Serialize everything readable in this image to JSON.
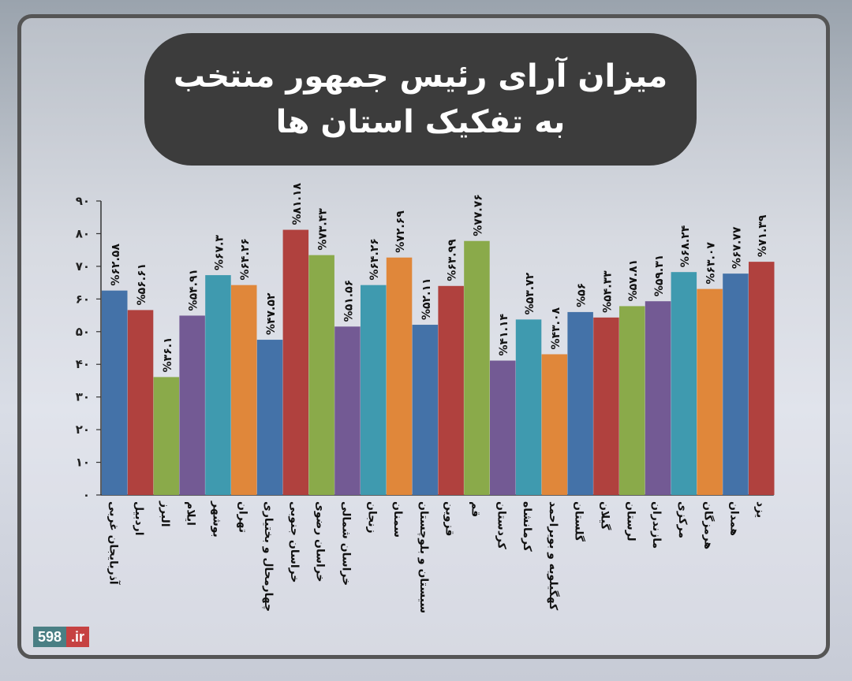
{
  "title": {
    "line1": "میزان آرای رئیس جمهور منتخب",
    "line2": "به تفکیک استان ها"
  },
  "logo": {
    "number": "598",
    "domain": ".ir"
  },
  "chart_data": {
    "type": "bar",
    "title": "میزان آرای رئیس جمهور منتخب به تفکیک استان ها",
    "ylim": [
      0,
      90
    ],
    "yticks": [
      0,
      10,
      20,
      30,
      40,
      50,
      60,
      70,
      80,
      90
    ],
    "ytick_labels": [
      "۰",
      "۱۰",
      "۲۰",
      "۳۰",
      "۴۰",
      "۵۰",
      "۶۰",
      "۷۰",
      "۸۰",
      "۹۰"
    ],
    "grid": false,
    "categories": [
      "آذربایجان غربی",
      "اردبیل",
      "البرز",
      "ایلام",
      "بوشهر",
      "تهران",
      "چهارمحال و بختیاری",
      "خراسان جنوبی",
      "خراسان رضوی",
      "خراسان شمالی",
      "زنجان",
      "سمنان",
      "سیستان و بلوچستان",
      "قزوین",
      "قم",
      "کردستان",
      "کرمانشاه",
      "کهگیلویه و بویراحمد",
      "گلستان",
      "گیلان",
      "لرستان",
      "مازندران",
      "مرکزی",
      "هرمزگان",
      "همدان",
      "یزد"
    ],
    "values": [
      62.58,
      56.61,
      36.1,
      54.91,
      67.3,
      64.26,
      47.52,
      81.18,
      73.43,
      51.56,
      64.26,
      72.69,
      52.11,
      63.99,
      77.76,
      41.14,
      53.72,
      43.08,
      56,
      54.33,
      57.81,
      59.31,
      68.24,
      63.07,
      67.77,
      71.39
    ],
    "data_labels": [
      "%۶۲.۵۸",
      "%۵۶.۶۱",
      "%۳۶.۱",
      "%۵۴.۹۱",
      "%۶۷.۳",
      "%۶۴.۲۶",
      "%۴۷.۵۲",
      "%۸۱.۱۸",
      "%۷۳.۴۳",
      "%۵۱.۵۶",
      "%۶۴.۲۶",
      "%۷۲.۶۹",
      "%۵۲.۱۱",
      "%۶۳.۹۹",
      "%۷۷.۷۶",
      "%۴۱.۱۴",
      "%۵۳.۷۲",
      "%۴۳.۰۸",
      "%۵۶",
      "%۵۴.۳۳",
      "%۵۷.۸۱",
      "%۵۹.۳۱",
      "%۶۸.۲۴",
      "%۶۳.۰۷",
      "%۶۷.۷۷",
      "%۷۱.۳۹"
    ],
    "colors": [
      "#4472a8",
      "#b0413e",
      "#8aaa4a",
      "#735a94",
      "#3f9aaf",
      "#e0873a",
      "#4472a8",
      "#b0413e",
      "#8aaa4a",
      "#735a94",
      "#3f9aaf",
      "#e0873a",
      "#4472a8",
      "#b0413e",
      "#8aaa4a",
      "#735a94",
      "#3f9aaf",
      "#e0873a",
      "#4472a8",
      "#b0413e",
      "#8aaa4a",
      "#735a94",
      "#3f9aaf",
      "#e0873a",
      "#4472a8",
      "#b0413e"
    ]
  }
}
